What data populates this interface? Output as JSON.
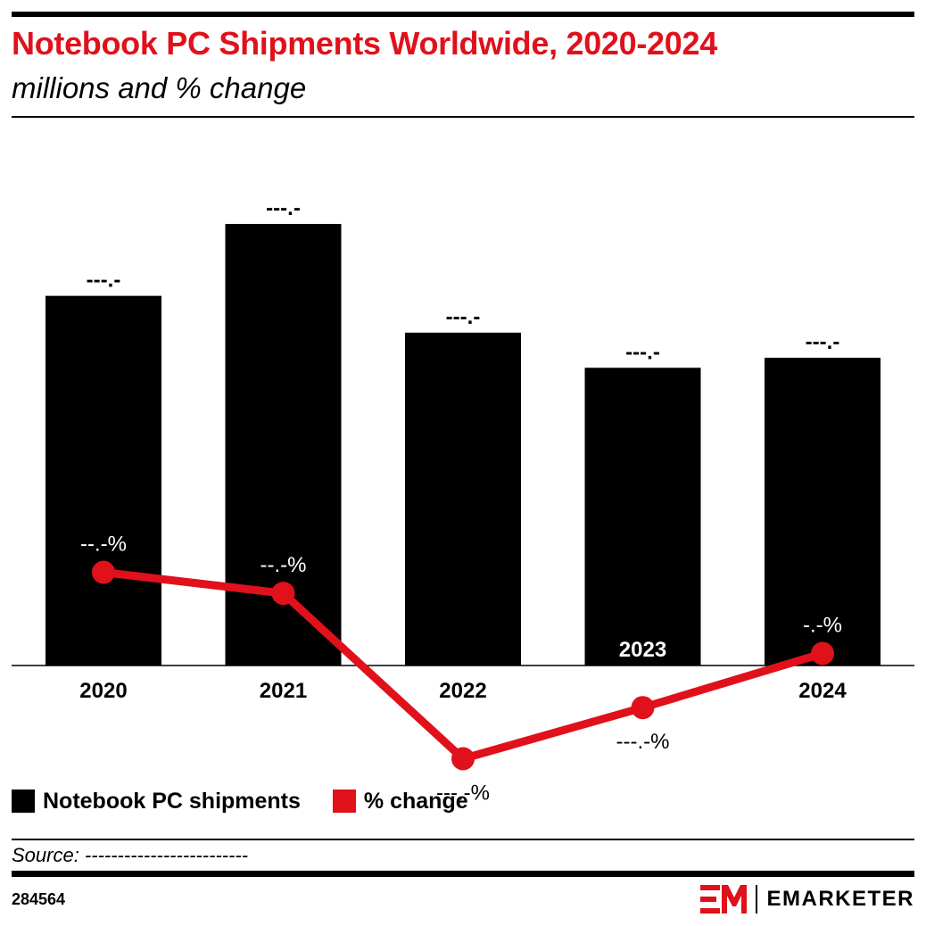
{
  "header": {
    "title": "Notebook PC Shipments Worldwide, 2020-2024",
    "subtitle": "millions and % change"
  },
  "legend": {
    "bar_label": "Notebook PC shipments",
    "line_label": "% change"
  },
  "footer": {
    "source": "Source: -------------------------",
    "chart_id": "284564",
    "brand": "EMARKETER"
  },
  "colors": {
    "bar": "#000000",
    "line": "#e0111b",
    "title": "#e0111b"
  },
  "chart_data": {
    "type": "bar",
    "title": "Notebook PC Shipments Worldwide, 2020-2024",
    "subtitle": "millions and % change",
    "categories": [
      "2020",
      "2021",
      "2022",
      "2023",
      "2024"
    ],
    "series": [
      {
        "name": "Notebook PC shipments",
        "type": "bar",
        "values": [
          221,
          264,
          199,
          178,
          184
        ],
        "labels": [
          "---.-",
          "---.-",
          "---.-",
          "---.-",
          "---.-"
        ]
      },
      {
        "name": "% change",
        "type": "line",
        "values": [
          31,
          24,
          -31,
          -14,
          4
        ],
        "labels": [
          "--.-%",
          "--.-%",
          "---.-%",
          "---.-%",
          "-.-%"
        ]
      }
    ],
    "ylim": [
      0,
      320
    ],
    "y2lim": [
      -68,
      110
    ],
    "grid": false,
    "legend_position": "bottom-left"
  }
}
